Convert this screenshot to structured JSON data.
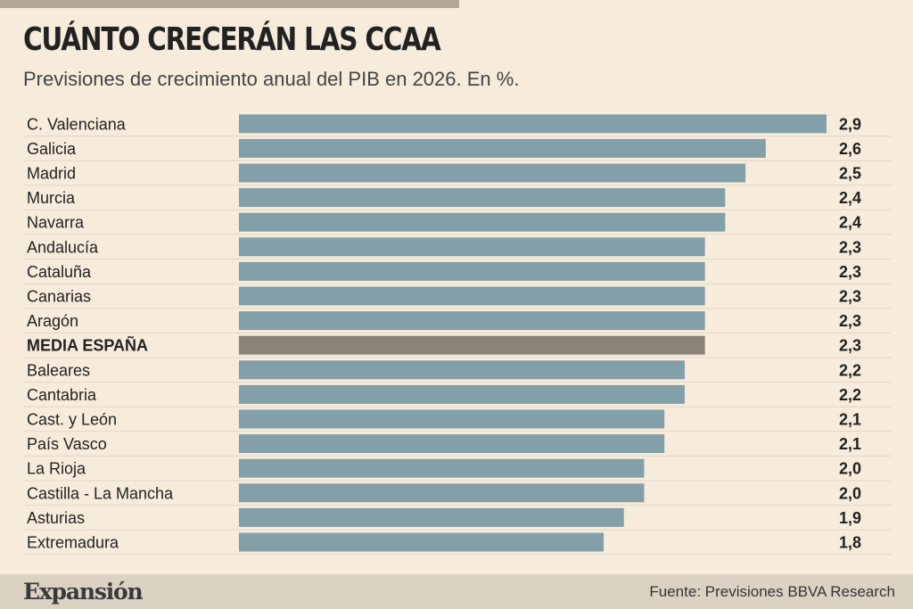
{
  "header": {
    "title": "CUÁNTO CRECERÁN LAS CCAA",
    "subtitle": "Previsiones de crecimiento anual del PIB en 2026. En %."
  },
  "footer": {
    "brand": "Expansión",
    "source": "Fuente: Previsiones BBVA Research"
  },
  "colors": {
    "bar": "#829faa",
    "highlight_bar": "#8c8276",
    "background": "#f7ecdc"
  },
  "chart_data": {
    "type": "bar",
    "orientation": "horizontal",
    "title": "CUÁNTO CRECERÁN LAS CCAA",
    "subtitle": "Previsiones de crecimiento anual del PIB en 2026. En %.",
    "categories": [
      "C. Valenciana",
      "Galicia",
      "Madrid",
      "Murcia",
      "Navarra",
      "Andalucía",
      "Cataluña",
      "Canarias",
      "Aragón",
      "MEDIA ESPAÑA",
      "Baleares",
      "Cantabria",
      "Cast. y León",
      "País Vasco",
      "La Rioja",
      "Castilla - La Mancha",
      "Asturias",
      "Extremadura"
    ],
    "values": [
      2.9,
      2.6,
      2.5,
      2.4,
      2.4,
      2.3,
      2.3,
      2.3,
      2.3,
      2.3,
      2.2,
      2.2,
      2.1,
      2.1,
      2.0,
      2.0,
      1.9,
      1.8
    ],
    "value_labels": [
      "2,9",
      "2,6",
      "2,5",
      "2,4",
      "2,4",
      "2,3",
      "2,3",
      "2,3",
      "2,3",
      "2,3",
      "2,2",
      "2,2",
      "2,1",
      "2,1",
      "2,0",
      "2,0",
      "1,9",
      "1,8"
    ],
    "highlight": "MEDIA ESPAÑA",
    "xlim": [
      0,
      2.9
    ],
    "grid": false,
    "legend": "none"
  }
}
